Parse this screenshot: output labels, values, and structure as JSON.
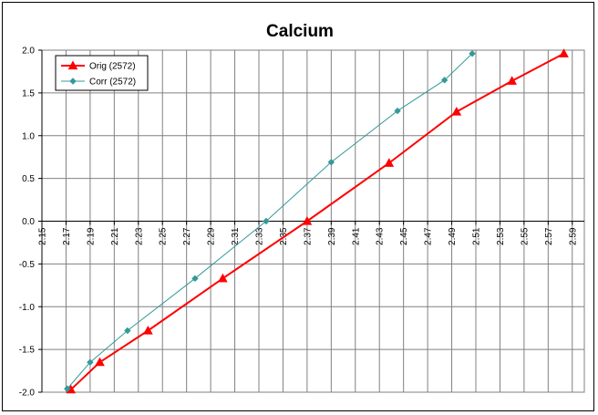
{
  "chart_data": {
    "type": "line",
    "title": "Calcium",
    "xlabel": "",
    "ylabel": "",
    "xlim": [
      2.15,
      2.6
    ],
    "ylim": [
      -2.0,
      2.0
    ],
    "x_ticks": [
      "2.15",
      "2.17",
      "2.19",
      "2.21",
      "2.23",
      "2.25",
      "2.27",
      "2.29",
      "2.31",
      "2.33",
      "2.35",
      "2.37",
      "2.39",
      "2.41",
      "2.43",
      "2.45",
      "2.47",
      "2.49",
      "2.51",
      "2.53",
      "2.55",
      "2.57",
      "2.59"
    ],
    "y_ticks": [
      "2.0",
      "1.5",
      "1.0",
      "0.5",
      "0.0",
      "-0.5",
      "-1.0",
      "-1.5",
      "-2.0"
    ],
    "grid": true,
    "legend_position": "top-left",
    "series": [
      {
        "name": "Orig (2572)",
        "color": "#ff0000",
        "marker": "triangle",
        "points": [
          [
            2.174,
            -1.97
          ],
          [
            2.198,
            -1.65
          ],
          [
            2.238,
            -1.28
          ],
          [
            2.3,
            -0.67
          ],
          [
            2.37,
            0.0
          ],
          [
            2.438,
            0.68
          ],
          [
            2.494,
            1.28
          ],
          [
            2.54,
            1.64
          ],
          [
            2.583,
            1.96
          ]
        ]
      },
      {
        "name": "Corr (2572)",
        "color": "#339999",
        "marker": "diamond",
        "points": [
          [
            2.171,
            -1.96
          ],
          [
            2.19,
            -1.65
          ],
          [
            2.221,
            -1.28
          ],
          [
            2.277,
            -0.67
          ],
          [
            2.336,
            0.0
          ],
          [
            2.39,
            0.69
          ],
          [
            2.445,
            1.29
          ],
          [
            2.484,
            1.65
          ],
          [
            2.507,
            1.96
          ]
        ]
      }
    ]
  }
}
